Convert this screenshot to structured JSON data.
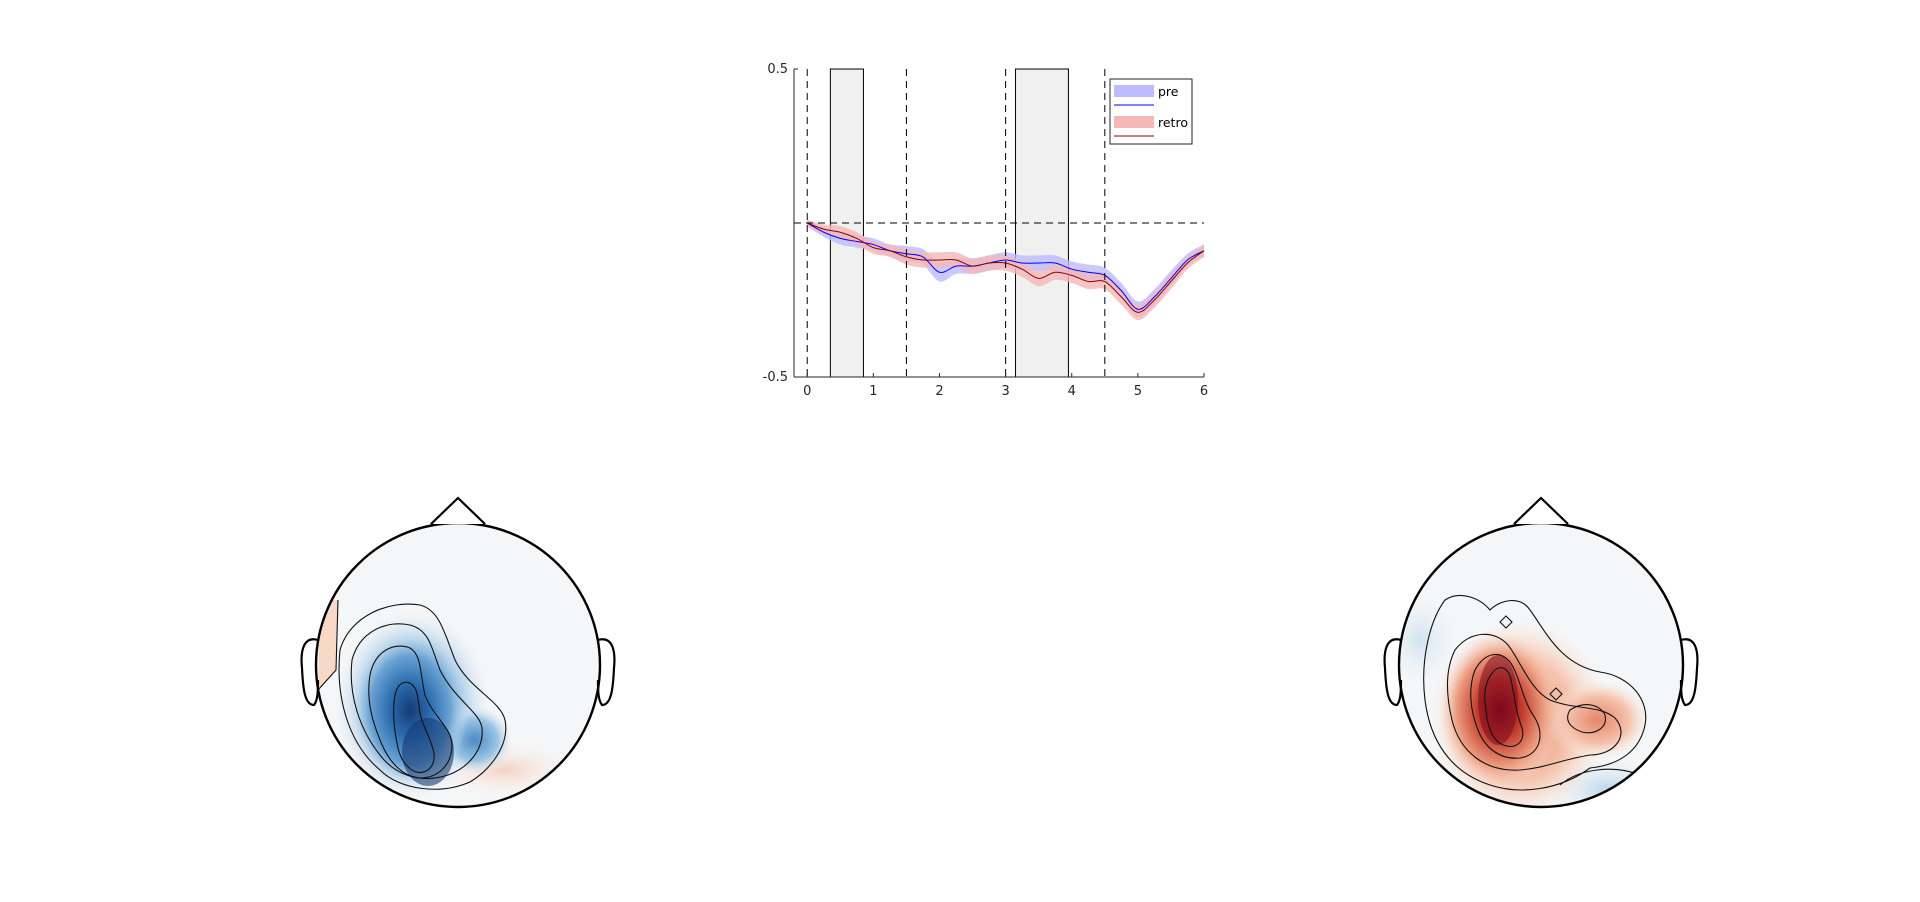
{
  "chart_data": {
    "type": "line",
    "title": "",
    "xlabel": "",
    "ylabel": "",
    "xlim": [
      -0.2,
      6
    ],
    "ylim": [
      -0.5,
      0.5
    ],
    "x_ticks": [
      0,
      1,
      2,
      3,
      4,
      5,
      6
    ],
    "x_tick_labels": [
      "0",
      "1",
      "2",
      "3",
      "4",
      "5",
      "6"
    ],
    "y_ticks": [
      -0.5,
      0.5
    ],
    "y_tick_labels": [
      "-0.5",
      "0.5"
    ],
    "grid": false,
    "legend_position": "top-right",
    "event_lines_x": [
      0,
      1.5,
      3,
      4.5
    ],
    "zero_line_y": 0,
    "shaded_windows": [
      [
        0.35,
        0.85
      ],
      [
        3.15,
        3.95
      ]
    ],
    "x": [
      0,
      0.25,
      0.5,
      0.75,
      1,
      1.25,
      1.5,
      1.75,
      2,
      2.25,
      2.5,
      2.75,
      3,
      3.25,
      3.5,
      3.75,
      4,
      4.25,
      4.5,
      4.75,
      5,
      5.25,
      5.5,
      5.75,
      6
    ],
    "series": [
      {
        "name": "pre",
        "color": "#0000ff",
        "band_color": "#bcbcff",
        "values": [
          0,
          -0.03,
          -0.05,
          -0.06,
          -0.07,
          -0.09,
          -0.1,
          -0.11,
          -0.16,
          -0.14,
          -0.14,
          -0.13,
          -0.12,
          -0.13,
          -0.13,
          -0.13,
          -0.15,
          -0.16,
          -0.17,
          -0.22,
          -0.28,
          -0.24,
          -0.18,
          -0.12,
          -0.09
        ],
        "error": [
          0.01,
          0.015,
          0.02,
          0.02,
          0.02,
          0.02,
          0.025,
          0.025,
          0.03,
          0.025,
          0.025,
          0.025,
          0.025,
          0.025,
          0.025,
          0.025,
          0.025,
          0.025,
          0.025,
          0.025,
          0.025,
          0.025,
          0.025,
          0.02,
          0.02
        ]
      },
      {
        "name": "retro",
        "color": "#8b0000",
        "band_color": "#f4b8b8",
        "values": [
          0,
          -0.02,
          -0.03,
          -0.05,
          -0.08,
          -0.09,
          -0.11,
          -0.12,
          -0.12,
          -0.12,
          -0.14,
          -0.13,
          -0.13,
          -0.15,
          -0.18,
          -0.16,
          -0.17,
          -0.19,
          -0.19,
          -0.24,
          -0.29,
          -0.25,
          -0.19,
          -0.13,
          -0.09
        ],
        "error": [
          0.01,
          0.015,
          0.02,
          0.02,
          0.02,
          0.02,
          0.025,
          0.025,
          0.025,
          0.025,
          0.025,
          0.025,
          0.025,
          0.025,
          0.025,
          0.025,
          0.025,
          0.025,
          0.025,
          0.025,
          0.025,
          0.025,
          0.025,
          0.02,
          0.02
        ]
      }
    ]
  },
  "topoplots": [
    {
      "polarity": "negative",
      "colormap": [
        "#2166ac",
        "#f7f7f7"
      ]
    },
    {
      "polarity": "positive",
      "colormap": [
        "#b2182b",
        "#f7f7f7"
      ]
    }
  ]
}
